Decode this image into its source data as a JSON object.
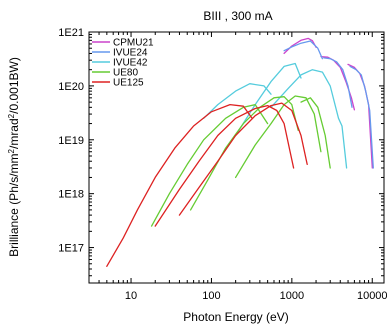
{
  "chart_data": {
    "type": "line",
    "title": "BIII , 300 mA",
    "xlabel": "Photon Energy (eV)",
    "ylabel_main": "Brilliance (Ph/s/mm",
    "ylabel_sup1": "2",
    "ylabel_mid": "/mrad",
    "ylabel_sup2": "2",
    "ylabel_end": "/0.001BW)",
    "x_scale": "log",
    "y_scale": "log",
    "xlim": [
      3,
      14000
    ],
    "ylim": [
      2.2e+16,
      1e+21
    ],
    "x_ticks": [
      {
        "value": 10,
        "label": "10"
      },
      {
        "value": 100,
        "label": "100"
      },
      {
        "value": 1000,
        "label": "1000"
      },
      {
        "value": 10000,
        "label": "10000"
      }
    ],
    "y_ticks": [
      {
        "value": 1e+17,
        "label": "1E17"
      },
      {
        "value": 1e+18,
        "label": "1E18"
      },
      {
        "value": 1e+19,
        "label": "1E19"
      },
      {
        "value": 1e+20,
        "label": "1E20"
      },
      {
        "value": 1e+21,
        "label": "1E21"
      }
    ],
    "legend_position": "top-left",
    "series": [
      {
        "name": "CPMU21",
        "color": "#cc44cc",
        "segments": [
          [
            [
              800,
              4e+20
            ],
            [
              1000,
              5.5e+20
            ],
            [
              1300,
              7e+20
            ],
            [
              1600,
              7.6e+20
            ],
            [
              1800,
              6.9e+20
            ],
            [
              2000,
              5.2e+20
            ]
          ],
          [
            [
              2300,
              3.5e+20
            ],
            [
              2800,
              3.4e+20
            ],
            [
              3300,
              3e+20
            ],
            [
              4000,
              2.2e+20
            ],
            [
              4700,
              1.2e+20
            ],
            [
              5500,
              6e+19
            ],
            [
              6000,
              3.6e+19
            ]
          ],
          [
            [
              5000,
              2.5e+20
            ],
            [
              6000,
              2.2e+20
            ],
            [
              7000,
              1.7e+20
            ],
            [
              8000,
              1e+20
            ],
            [
              9000,
              4.5e+19
            ],
            [
              10000,
              3e+18
            ]
          ]
        ]
      },
      {
        "name": "IVUE24",
        "color": "#6699ee",
        "segments": [
          [
            [
              800,
              4.5e+20
            ],
            [
              1000,
              5.3e+20
            ],
            [
              1300,
              6.2e+20
            ],
            [
              1700,
              6.8e+20
            ],
            [
              2100,
              5e+20
            ],
            [
              2400,
              3.2e+20
            ]
          ],
          [
            [
              2500,
              3.3e+20
            ],
            [
              3000,
              3.2e+20
            ],
            [
              3600,
              2.8e+20
            ],
            [
              4300,
              2e+20
            ],
            [
              5000,
              1e+20
            ],
            [
              5600,
              4e+19
            ]
          ],
          [
            [
              5300,
              2.3e+20
            ],
            [
              6300,
              2e+20
            ],
            [
              7300,
              1.6e+20
            ],
            [
              8300,
              8e+19
            ],
            [
              9300,
              3.5e+19
            ],
            [
              10300,
              3e+18
            ]
          ]
        ]
      },
      {
        "name": "IVUE42",
        "color": "#55ccdd",
        "segments": [
          [
            [
              80,
              2.5e+19
            ],
            [
              120,
              4.5e+19
            ],
            [
              200,
              8e+19
            ],
            [
              300,
              1.1e+20
            ],
            [
              450,
              1e+20
            ],
            [
              550,
              7e+19
            ]
          ],
          [
            [
              200,
              1.2e+19
            ],
            [
              350,
              4.5e+19
            ],
            [
              550,
              1.2e+20
            ],
            [
              800,
              2.3e+20
            ],
            [
              1100,
              2.6e+20
            ],
            [
              1300,
              1.4e+20
            ]
          ],
          [
            [
              550,
              4e+19
            ],
            [
              900,
              9e+19
            ],
            [
              1300,
              1.6e+20
            ],
            [
              1800,
              2e+20
            ],
            [
              2400,
              1.8e+20
            ],
            [
              3000,
              1e+20
            ],
            [
              3800,
              2.5e+19
            ],
            [
              4200,
              1.8e+19
            ],
            [
              4800,
              3e+18
            ]
          ]
        ]
      },
      {
        "name": "UE80",
        "color": "#66cc33",
        "segments": [
          [
            [
              18,
              2.5e+17
            ],
            [
              30,
              1e+18
            ],
            [
              50,
              3.5e+18
            ],
            [
              80,
              1e+19
            ],
            [
              150,
              2.5e+19
            ],
            [
              250,
              4e+19
            ],
            [
              350,
              4.5e+19
            ],
            [
              500,
              2e+19
            ]
          ],
          [
            [
              55,
              5e+17
            ],
            [
              90,
              1.8e+18
            ],
            [
              150,
              7e+18
            ],
            [
              250,
              2e+19
            ],
            [
              400,
              4e+19
            ],
            [
              600,
              6e+19
            ],
            [
              800,
              6.3e+19
            ],
            [
              1000,
              4.5e+19
            ],
            [
              1200,
              1.5e+19
            ]
          ],
          [
            [
              200,
              2e+18
            ],
            [
              350,
              8e+18
            ],
            [
              550,
              2e+19
            ],
            [
              800,
              4.5e+19
            ],
            [
              1100,
              6.5e+19
            ],
            [
              1500,
              6e+19
            ],
            [
              1900,
              3e+19
            ],
            [
              2300,
              6e+18
            ]
          ],
          [
            [
              1300,
              5e+19
            ],
            [
              1700,
              6e+19
            ],
            [
              2100,
              4e+19
            ],
            [
              2600,
              1.2e+19
            ],
            [
              3000,
              3e+18
            ]
          ]
        ]
      },
      {
        "name": "UE125",
        "color": "#dd2222",
        "segments": [
          [
            [
              5,
              4.5e+16
            ],
            [
              8,
              1.5e+17
            ],
            [
              12,
              5e+17
            ],
            [
              20,
              2e+18
            ],
            [
              35,
              7e+18
            ],
            [
              60,
              1.8e+19
            ],
            [
              100,
              3.3e+19
            ],
            [
              170,
              4.5e+19
            ],
            [
              250,
              4.2e+19
            ],
            [
              320,
              2.5e+19
            ]
          ],
          [
            [
              20,
              2.5e+17
            ],
            [
              40,
              1.2e+18
            ],
            [
              70,
              4e+18
            ],
            [
              120,
              1.2e+19
            ],
            [
              200,
              2.5e+19
            ],
            [
              350,
              3.8e+19
            ],
            [
              500,
              4.3e+19
            ],
            [
              650,
              3.5e+19
            ],
            [
              800,
              2e+19
            ],
            [
              950,
              6e+18
            ],
            [
              1050,
              3e+18
            ]
          ],
          [
            [
              40,
              4e+17
            ],
            [
              70,
              1.3e+18
            ],
            [
              120,
              4e+18
            ],
            [
              200,
              1.2e+19
            ],
            [
              350,
              2.8e+19
            ],
            [
              550,
              4.3e+19
            ],
            [
              750,
              4.8e+19
            ],
            [
              1000,
              3.5e+19
            ],
            [
              1300,
              1.2e+19
            ],
            [
              1550,
              3.5e+18
            ]
          ]
        ]
      }
    ]
  }
}
